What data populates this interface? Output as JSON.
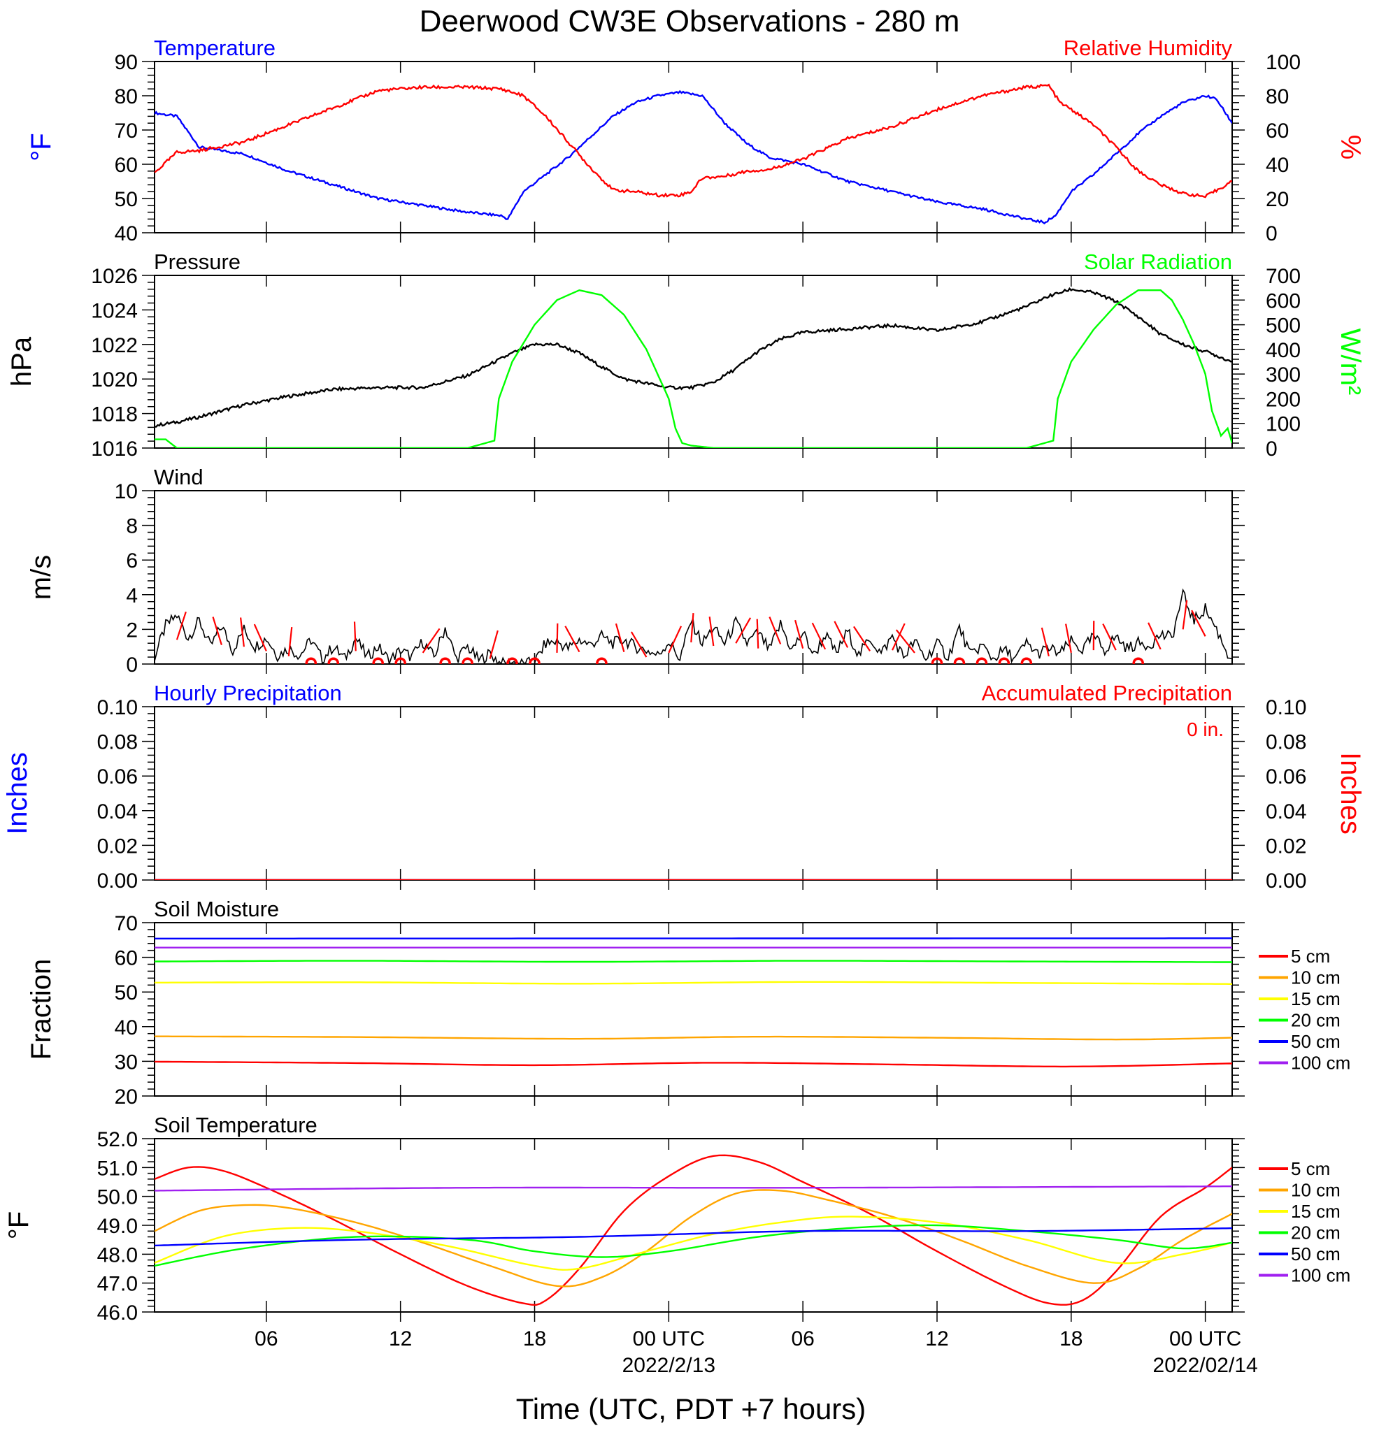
{
  "figure": {
    "title": "Deerwood CW3E Observations - 280 m",
    "xlabel": "Time (UTC, PDT +7 hours)",
    "x_tick_labels": [
      {
        "hours": 6,
        "label": "06"
      },
      {
        "hours": 12,
        "label": "12"
      },
      {
        "hours": 18,
        "label": "18"
      },
      {
        "hours": 24,
        "label": "00 UTC",
        "sublabel": "2022/2/13"
      },
      {
        "hours": 30,
        "label": "06"
      },
      {
        "hours": 36,
        "label": "12"
      },
      {
        "hours": 42,
        "label": "18"
      },
      {
        "hours": 48,
        "label": "00 UTC",
        "sublabel": "2022/02/14"
      }
    ],
    "x_range_hours_utc_from_2022_02_12_00": [
      1,
      49.2
    ]
  },
  "chart_data": [
    {
      "id": "temp_rh",
      "type": "line",
      "left_title": "Temperature",
      "right_title": "Relative Humidity",
      "left_axis": {
        "label": "°F",
        "range": [
          40,
          90
        ],
        "ticks": [
          "40",
          "50",
          "60",
          "70",
          "80",
          "90"
        ]
      },
      "right_axis": {
        "label": "%",
        "range": [
          0,
          100
        ],
        "ticks": [
          "0",
          "20",
          "40",
          "60",
          "80",
          "100"
        ]
      },
      "series": [
        {
          "name": "Temperature",
          "axis": "left",
          "color": "#0000ff",
          "x": [
            1,
            2,
            3,
            5,
            7,
            9,
            11,
            13,
            15,
            16.5,
            16.8,
            17.5,
            18.5,
            19.5,
            20.5,
            21.5,
            22.5,
            23.5,
            24.5,
            25.5,
            26.5,
            27.5,
            28.5,
            30,
            32,
            34,
            36,
            38,
            40,
            40.8,
            41.3,
            42,
            43,
            44,
            45,
            46,
            47,
            48,
            48.5,
            49.2
          ],
          "y": [
            75,
            74,
            65,
            63,
            58,
            54,
            50,
            48,
            46,
            45,
            44,
            52,
            57,
            62,
            68,
            74,
            78,
            80,
            81,
            80,
            72,
            66,
            62,
            60,
            55,
            52,
            49,
            47,
            44,
            43,
            45,
            52,
            57,
            63,
            69,
            74,
            78,
            80,
            79,
            72
          ]
        },
        {
          "name": "Relative Humidity",
          "axis": "right",
          "color": "#ff0000",
          "x": [
            1,
            2,
            3,
            5,
            7,
            9,
            11,
            13,
            15,
            16.5,
            17.5,
            18.5,
            19.5,
            20.5,
            21.5,
            22.5,
            23.5,
            24.5,
            25,
            25.5,
            26.5,
            27.5,
            28.5,
            30,
            32,
            34,
            36,
            38,
            40,
            41,
            41.5,
            42,
            43,
            44,
            45,
            46,
            47,
            48,
            49.2
          ],
          "y": [
            35,
            47,
            48,
            53,
            63,
            73,
            83,
            85,
            85,
            84,
            80,
            68,
            53,
            38,
            25,
            24,
            22,
            22,
            24,
            32,
            33,
            36,
            37,
            43,
            55,
            62,
            72,
            80,
            85,
            86,
            76,
            72,
            63,
            50,
            36,
            28,
            23,
            21,
            30
          ]
        }
      ]
    },
    {
      "id": "pressure_solar",
      "type": "line",
      "left_title": "Pressure",
      "right_title": "Solar Radiation",
      "left_axis": {
        "label": "hPa",
        "range": [
          1016,
          1026
        ],
        "ticks": [
          "1016",
          "1018",
          "1020",
          "1022",
          "1024",
          "1026"
        ]
      },
      "right_axis": {
        "label": "W/m²",
        "range": [
          0,
          700
        ],
        "ticks": [
          "0",
          "100",
          "200",
          "300",
          "400",
          "500",
          "600",
          "700"
        ]
      },
      "series": [
        {
          "name": "Pressure",
          "axis": "left",
          "color": "#000000",
          "x": [
            1,
            2,
            3,
            5,
            7,
            9,
            11,
            13,
            15,
            17,
            18,
            19,
            20,
            21,
            22,
            24,
            25,
            26,
            27,
            28,
            29,
            30,
            32,
            34,
            36,
            38,
            40,
            41,
            42,
            43,
            44,
            45,
            46,
            47,
            48,
            49.2
          ],
          "y": [
            1017.3,
            1017.5,
            1017.8,
            1018.5,
            1019.0,
            1019.4,
            1019.5,
            1019.5,
            1020.2,
            1021.5,
            1022.0,
            1022.0,
            1021.5,
            1020.7,
            1020.0,
            1019.5,
            1019.5,
            1019.8,
            1020.6,
            1021.6,
            1022.3,
            1022.7,
            1022.9,
            1023.1,
            1022.8,
            1023.3,
            1024.2,
            1024.8,
            1025.2,
            1025.0,
            1024.5,
            1023.6,
            1022.6,
            1022.0,
            1021.6,
            1021.0
          ]
        },
        {
          "name": "Solar Radiation",
          "axis": "right",
          "color": "#00ff00",
          "x": [
            1,
            1.5,
            2,
            15,
            16.2,
            16.4,
            17,
            18,
            19,
            20,
            21,
            22,
            23,
            24,
            24.3,
            24.6,
            25,
            26,
            40,
            41.2,
            41.4,
            42,
            43,
            44,
            45,
            46,
            46.5,
            47,
            47.5,
            48,
            48.3,
            48.7,
            49,
            49.2
          ],
          "y": [
            35,
            35,
            0,
            0,
            30,
            200,
            350,
            500,
            600,
            640,
            620,
            540,
            400,
            200,
            80,
            20,
            10,
            0,
            0,
            30,
            200,
            350,
            480,
            580,
            640,
            640,
            600,
            520,
            420,
            300,
            150,
            50,
            80,
            20
          ]
        }
      ]
    },
    {
      "id": "wind",
      "type": "line",
      "left_title": "Wind",
      "left_axis": {
        "label": "m/s",
        "range": [
          0,
          10
        ],
        "ticks": [
          "0",
          "2",
          "4",
          "6",
          "8",
          "10"
        ]
      },
      "series": [
        {
          "name": "Wind speed",
          "axis": "left",
          "color": "#000000",
          "x": [
            1,
            1.5,
            2,
            2.5,
            3,
            3.5,
            4,
            4.5,
            5,
            5.5,
            6,
            6.5,
            7,
            7.5,
            8,
            8.5,
            9,
            9.5,
            10,
            10.5,
            11,
            11.5,
            12,
            12.5,
            13,
            13.5,
            14,
            14.5,
            15,
            15.5,
            16,
            16.5,
            17,
            17.5,
            18,
            18.5,
            19,
            19.5,
            20,
            20.5,
            21,
            21.5,
            22,
            22.5,
            23,
            23.5,
            24,
            24.5,
            25,
            25.5,
            26,
            26.5,
            27,
            27.5,
            28,
            28.5,
            29,
            29.5,
            30,
            30.5,
            31,
            31.5,
            32,
            32.5,
            33,
            33.5,
            34,
            34.5,
            35,
            35.5,
            36,
            36.5,
            37,
            37.5,
            38,
            38.5,
            39,
            39.5,
            40,
            40.5,
            41,
            41.5,
            42,
            42.5,
            43,
            43.5,
            44,
            44.5,
            45,
            45.5,
            46,
            46.5,
            47,
            47.5,
            48,
            48.5,
            49,
            49.2
          ],
          "y": [
            0.4,
            2.2,
            2.8,
            1.5,
            2.5,
            1.0,
            2.2,
            0.8,
            2.0,
            1.0,
            1.5,
            0.5,
            0.9,
            0.5,
            1.4,
            0.3,
            1.0,
            0.3,
            1.5,
            0.4,
            1.0,
            0.2,
            0.8,
            0.4,
            1.3,
            0.4,
            2.1,
            0.3,
            1.0,
            0.2,
            0.6,
            0.0,
            0.1,
            0.0,
            0.1,
            1.2,
            1.3,
            0.9,
            1.4,
            1.1,
            1.6,
            1.2,
            1.4,
            1.0,
            0.8,
            0.5,
            1.3,
            0.3,
            2.5,
            1.2,
            2.1,
            1.2,
            2.4,
            1.2,
            1.8,
            0.8,
            2.3,
            0.8,
            1.8,
            0.5,
            1.7,
            0.6,
            1.9,
            0.5,
            1.5,
            0.6,
            1.6,
            0.4,
            1.3,
            0.3,
            1.2,
            0.4,
            2.1,
            0.5,
            1.1,
            0.3,
            0.8,
            0.3,
            1.2,
            0.6,
            0.9,
            0.6,
            1.3,
            0.8,
            1.6,
            0.8,
            1.6,
            0.9,
            1.2,
            1.1,
            1.7,
            1.5,
            4.0,
            2.5,
            3.2,
            2.0,
            0.6,
            0.3
          ]
        }
      ],
      "direction_markers_hours": [
        2,
        4,
        5,
        6,
        7,
        8,
        9,
        10,
        11,
        12,
        13,
        14,
        15,
        16,
        17,
        18,
        19,
        20,
        21,
        22,
        23,
        24,
        25,
        26,
        27,
        28,
        29,
        30,
        31,
        32,
        33,
        34,
        35,
        36,
        37,
        38,
        39,
        40,
        41,
        42,
        43,
        44,
        45,
        46,
        47,
        48
      ]
    },
    {
      "id": "precip",
      "type": "line",
      "left_title": "Hourly Precipitation",
      "right_title": "Accumulated Precipitation",
      "annotation": "0 in.",
      "left_axis": {
        "label": "Inches",
        "range": [
          0,
          0.1
        ],
        "ticks": [
          "0.00",
          "0.02",
          "0.04",
          "0.06",
          "0.08",
          "0.10"
        ]
      },
      "right_axis": {
        "label": "Inches",
        "range": [
          0,
          0.1
        ],
        "ticks": [
          "0.00",
          "0.02",
          "0.04",
          "0.06",
          "0.08",
          "0.10"
        ]
      },
      "series": [
        {
          "name": "Hourly Precipitation",
          "axis": "left",
          "color": "#0000ff",
          "x": [
            1,
            49.2
          ],
          "y": [
            0,
            0
          ]
        },
        {
          "name": "Accumulated Precipitation",
          "axis": "right",
          "color": "#ff0000",
          "x": [
            1,
            49.2
          ],
          "y": [
            0,
            0
          ]
        }
      ]
    },
    {
      "id": "soil_moisture",
      "type": "line",
      "left_title": "Soil Moisture",
      "left_axis": {
        "label": "Fraction",
        "range": [
          20,
          70
        ],
        "ticks": [
          "20",
          "30",
          "40",
          "50",
          "60",
          "70"
        ]
      },
      "series": [
        {
          "name": "5 cm",
          "color": "#ff0000",
          "x": [
            1,
            10,
            18,
            26,
            34,
            42,
            49.2
          ],
          "y": [
            29.9,
            29.5,
            28.9,
            29.6,
            29.1,
            28.5,
            29.4
          ]
        },
        {
          "name": "10 cm",
          "color": "#ffa500",
          "x": [
            1,
            10,
            20,
            28,
            36,
            44,
            49.2
          ],
          "y": [
            37.2,
            37.0,
            36.5,
            37.1,
            36.8,
            36.3,
            36.8
          ]
        },
        {
          "name": "15 cm",
          "color": "#ffff00",
          "x": [
            1,
            10,
            20,
            30,
            40,
            49.2
          ],
          "y": [
            52.7,
            52.8,
            52.4,
            52.9,
            52.6,
            52.3
          ]
        },
        {
          "name": "20 cm",
          "color": "#00ff00",
          "x": [
            1,
            10,
            20,
            30,
            40,
            49.2
          ],
          "y": [
            58.8,
            59.0,
            58.7,
            59.0,
            58.8,
            58.6
          ]
        },
        {
          "name": "50 cm",
          "color": "#0000ff",
          "x": [
            1,
            49.2
          ],
          "y": [
            65.4,
            65.5
          ]
        },
        {
          "name": "100 cm",
          "color": "#a020f0",
          "x": [
            1,
            49.2
          ],
          "y": [
            62.8,
            62.8
          ]
        }
      ]
    },
    {
      "id": "soil_temperature",
      "type": "line",
      "left_title": "Soil Temperature",
      "left_axis": {
        "label": "°F",
        "range": [
          46,
          52
        ],
        "ticks": [
          "46.0",
          "47.0",
          "48.0",
          "49.0",
          "50.0",
          "51.0",
          "52.0"
        ]
      },
      "series": [
        {
          "name": "5 cm",
          "color": "#ff0000",
          "x": [
            1,
            2.5,
            4,
            6,
            9,
            12,
            15,
            17.5,
            18.5,
            20,
            22,
            24,
            26,
            28,
            30,
            33,
            36,
            39,
            41,
            42.5,
            44,
            46,
            48,
            49.2
          ],
          "y": [
            50.6,
            51.0,
            50.9,
            50.3,
            49.2,
            48.0,
            46.9,
            46.3,
            46.4,
            47.5,
            49.5,
            50.7,
            51.4,
            51.2,
            50.5,
            49.4,
            48.1,
            46.9,
            46.3,
            46.4,
            47.4,
            49.3,
            50.3,
            51.0
          ]
        },
        {
          "name": "10 cm",
          "color": "#ffa500",
          "x": [
            1,
            3,
            5,
            7,
            10,
            13,
            16,
            19,
            21,
            23,
            25,
            27,
            29,
            31,
            34,
            37,
            40,
            43,
            45,
            47,
            49.2
          ],
          "y": [
            48.8,
            49.5,
            49.7,
            49.6,
            49.1,
            48.4,
            47.6,
            46.9,
            47.2,
            48.1,
            49.3,
            50.1,
            50.2,
            49.9,
            49.3,
            48.5,
            47.6,
            47.0,
            47.5,
            48.5,
            49.4
          ]
        },
        {
          "name": "15 cm",
          "color": "#ffff00",
          "x": [
            1,
            4,
            7,
            10,
            14,
            18,
            20,
            23,
            26,
            29,
            32,
            36,
            40,
            44,
            47,
            49.2
          ],
          "y": [
            47.7,
            48.6,
            48.9,
            48.8,
            48.3,
            47.6,
            47.5,
            48.1,
            48.7,
            49.1,
            49.3,
            49.1,
            48.5,
            47.7,
            48.0,
            48.4
          ]
        },
        {
          "name": "20 cm",
          "color": "#00ff00",
          "x": [
            1,
            5,
            10,
            15,
            18,
            21,
            24,
            28,
            32,
            36,
            40,
            44,
            47,
            49.2
          ],
          "y": [
            47.6,
            48.2,
            48.6,
            48.5,
            48.1,
            47.9,
            48.1,
            48.6,
            48.9,
            49.0,
            48.8,
            48.5,
            48.2,
            48.4
          ]
        },
        {
          "name": "50 cm",
          "color": "#0000ff",
          "x": [
            1,
            10,
            20,
            30,
            40,
            49.2
          ],
          "y": [
            48.3,
            48.5,
            48.6,
            48.8,
            48.8,
            48.9
          ]
        },
        {
          "name": "100 cm",
          "color": "#a020f0",
          "x": [
            1,
            15,
            30,
            49.2
          ],
          "y": [
            50.2,
            50.3,
            50.3,
            50.35
          ]
        }
      ]
    }
  ],
  "legend_items": [
    "5 cm",
    "10 cm",
    "15 cm",
    "20 cm",
    "50 cm",
    "100 cm"
  ],
  "colors": {
    "blue": "#0000ff",
    "red": "#ff0000",
    "green": "#00ff00",
    "black": "#000000"
  }
}
